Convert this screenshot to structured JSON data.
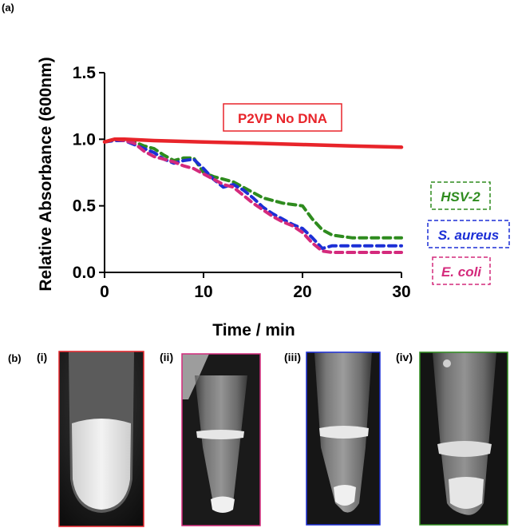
{
  "panel_a_label": "(a)",
  "panel_b_label": "(b)",
  "chart_data": {
    "type": "line",
    "title": "",
    "xlabel": "Time / min",
    "ylabel": "Relative Absorbance (600nm)",
    "xlim": [
      0,
      30
    ],
    "ylim": [
      0,
      1.5
    ],
    "xticks": [
      0,
      10,
      20,
      30
    ],
    "yticks": [
      0.0,
      0.5,
      1.0,
      1.5
    ],
    "xtick_labels": [
      "0",
      "10",
      "20",
      "30"
    ],
    "ytick_labels": [
      "0.0",
      "0.5",
      "1.0",
      "1.5"
    ],
    "grid": false,
    "series": [
      {
        "name": "P2VP No DNA",
        "color": "#e8242a",
        "style": "solid",
        "x": [
          0,
          1,
          2,
          5,
          10,
          15,
          20,
          25,
          30
        ],
        "y": [
          0.98,
          1.0,
          1.0,
          0.99,
          0.98,
          0.97,
          0.96,
          0.95,
          0.94
        ]
      },
      {
        "name": "HSV-2",
        "color": "#2e8b1e",
        "style": "dashed",
        "x": [
          0,
          1,
          2,
          3,
          4,
          5,
          6,
          7,
          8,
          9,
          10,
          11,
          12,
          13,
          14,
          15,
          16,
          17,
          18,
          19,
          20,
          21,
          22,
          23,
          25,
          30
        ],
        "y": [
          0.98,
          1.0,
          1.0,
          0.98,
          0.95,
          0.93,
          0.88,
          0.84,
          0.86,
          0.86,
          0.75,
          0.72,
          0.7,
          0.68,
          0.64,
          0.6,
          0.56,
          0.54,
          0.52,
          0.51,
          0.5,
          0.4,
          0.32,
          0.28,
          0.26,
          0.26
        ]
      },
      {
        "name": "S. aureus",
        "color": "#1c2fd6",
        "style": "dashed",
        "x": [
          0,
          1,
          2,
          3,
          4,
          5,
          6,
          7,
          8,
          9,
          10,
          11,
          12,
          13,
          14,
          15,
          16,
          17,
          18,
          19,
          20,
          21,
          22,
          23,
          25,
          30
        ],
        "y": [
          0.98,
          0.99,
          0.99,
          0.96,
          0.93,
          0.9,
          0.85,
          0.82,
          0.84,
          0.85,
          0.78,
          0.7,
          0.64,
          0.66,
          0.62,
          0.56,
          0.49,
          0.44,
          0.4,
          0.36,
          0.33,
          0.26,
          0.18,
          0.2,
          0.2,
          0.2
        ]
      },
      {
        "name": "E. coli",
        "color": "#d42a7c",
        "style": "dashed",
        "x": [
          0,
          1,
          2,
          3,
          4,
          5,
          6,
          7,
          8,
          9,
          10,
          11,
          12,
          13,
          14,
          15,
          16,
          17,
          18,
          19,
          20,
          21,
          22,
          23,
          25,
          30
        ],
        "y": [
          0.98,
          1.0,
          0.99,
          0.97,
          0.91,
          0.87,
          0.85,
          0.83,
          0.8,
          0.78,
          0.74,
          0.7,
          0.66,
          0.64,
          0.58,
          0.52,
          0.47,
          0.42,
          0.38,
          0.35,
          0.3,
          0.22,
          0.16,
          0.15,
          0.15,
          0.15
        ]
      }
    ],
    "annotations": {
      "p2vp": "P2VP No DNA",
      "hsv": "HSV-2",
      "saureus": "S. aureus",
      "ecoli": "E. coli"
    }
  },
  "photos": [
    {
      "label": "(i)",
      "frame_color": "#e8242a"
    },
    {
      "label": "(ii)",
      "frame_color": "#d42a7c"
    },
    {
      "label": "(iii)",
      "frame_color": "#1c2fd6"
    },
    {
      "label": "(iv)",
      "frame_color": "#2e8b1e"
    }
  ]
}
